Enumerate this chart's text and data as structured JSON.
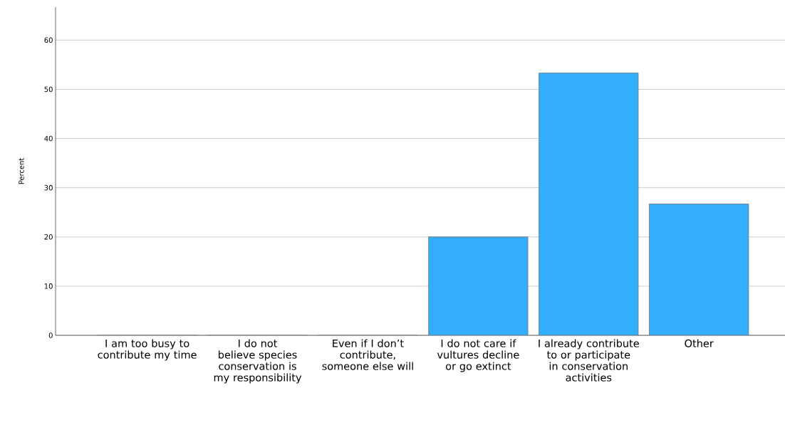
{
  "chart_data": {
    "type": "bar",
    "ylabel": "Percent",
    "categories": [
      "I am too busy to contribute my time",
      "I do not believe species conservation is my responsibility",
      "Even if I don’t contribute, someone else will",
      "I do not care if vultures decline or go extinct",
      "I already contribute to or participate in conservation activities",
      "Other"
    ],
    "values": [
      0,
      0,
      0,
      20,
      53.3,
      26.7
    ],
    "color": "#33aefc",
    "ylim": [
      0,
      66.7
    ],
    "yticks": [
      0,
      10,
      20,
      30,
      40,
      50,
      60
    ],
    "grid": "y"
  }
}
